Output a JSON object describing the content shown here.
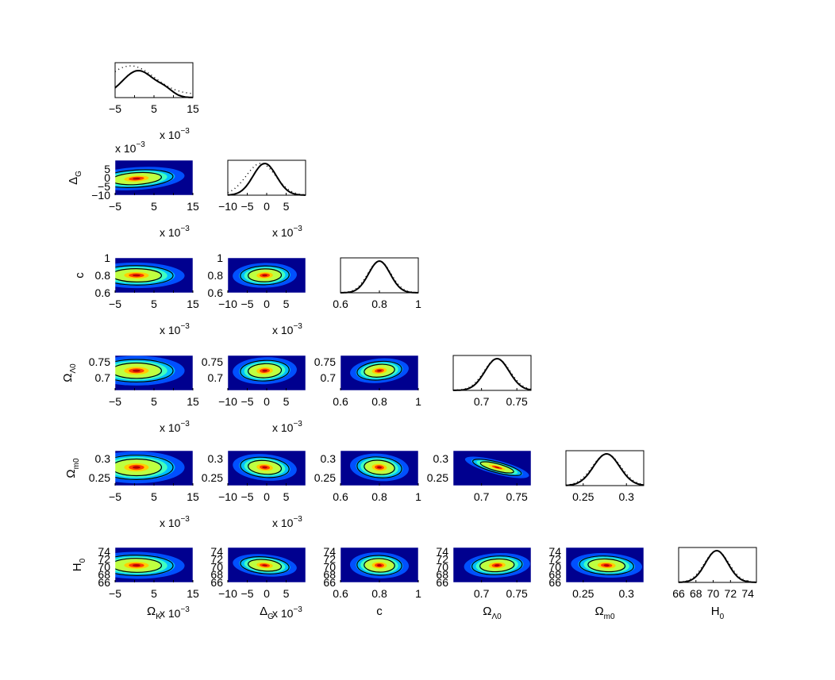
{
  "chart_data": {
    "type": "corner-plot",
    "parameters": [
      {
        "id": "omk",
        "label_main": "Ω",
        "label_sub": "K",
        "range": [
          -5,
          15
        ],
        "ticks": [
          -5,
          0,
          5,
          10,
          15
        ],
        "tick_labels": [
          "−5",
          "",
          "5",
          "",
          "15"
        ],
        "multiplier": "x 10",
        "multiplier_exp": "−3",
        "post_mean": 0.5,
        "post_sd": 4.5
      },
      {
        "id": "dg",
        "label_main": "Δ",
        "label_sub": "G",
        "range": [
          -10,
          10
        ],
        "ticks": [
          -10,
          -5,
          0,
          5
        ],
        "tick_labels": [
          "−10",
          "−5",
          "0",
          "5"
        ],
        "multiplier": "x 10",
        "multiplier_exp": "−3",
        "post_mean": -0.5,
        "post_sd": 3.0
      },
      {
        "id": "c",
        "label_main": "c",
        "label_sub": "",
        "range": [
          0.6,
          1.0
        ],
        "ticks": [
          0.6,
          0.8,
          1.0
        ],
        "tick_labels": [
          "0.6",
          "0.8",
          "1"
        ],
        "multiplier": "",
        "multiplier_exp": "",
        "post_mean": 0.8,
        "post_sd": 0.055
      },
      {
        "id": "oml",
        "label_main": "Ω",
        "label_sub": "Λ0",
        "range": [
          0.66,
          0.77
        ],
        "ticks": [
          0.7,
          0.75
        ],
        "tick_labels": [
          "0.7",
          "0.75"
        ],
        "multiplier": "",
        "multiplier_exp": "",
        "post_mean": 0.722,
        "post_sd": 0.017
      },
      {
        "id": "omm",
        "label_main": "Ω",
        "label_sub": "m0",
        "range": [
          0.23,
          0.32
        ],
        "ticks": [
          0.25,
          0.3
        ],
        "tick_labels": [
          "0.25",
          "0.3"
        ],
        "multiplier": "",
        "multiplier_exp": "",
        "post_mean": 0.277,
        "post_sd": 0.015
      },
      {
        "id": "h0",
        "label_main": "H",
        "label_sub": "0",
        "range": [
          66,
          75
        ],
        "ticks": [
          66,
          68,
          70,
          72,
          74
        ],
        "tick_labels": [
          "66",
          "68",
          "70",
          "72",
          "74"
        ],
        "multiplier": "",
        "multiplier_exp": "",
        "post_mean": 70.4,
        "post_sd": 1.3
      }
    ],
    "row_axis_label": {
      "main": "Δ",
      "sub": "G"
    },
    "correlations": {
      "1,0": 0.35,
      "2,0": -0.05,
      "2,1": 0.1,
      "3,0": 0.0,
      "3,1": 0.15,
      "3,2": 0.3,
      "4,0": 0.0,
      "4,1": -0.3,
      "4,2": -0.25,
      "4,3": -0.95,
      "5,0": -0.05,
      "5,1": -0.35,
      "5,2": -0.1,
      "5,3": 0.2,
      "5,4": -0.2
    },
    "marginals": {
      "line_styles": [
        "solid",
        "dotted"
      ]
    },
    "colormap": [
      "#00008f",
      "#0050ff",
      "#00bfff",
      "#40ffbf",
      "#bfff40",
      "#ffcf00",
      "#ff4000",
      "#b00000"
    ],
    "contour_color": "#000000"
  }
}
